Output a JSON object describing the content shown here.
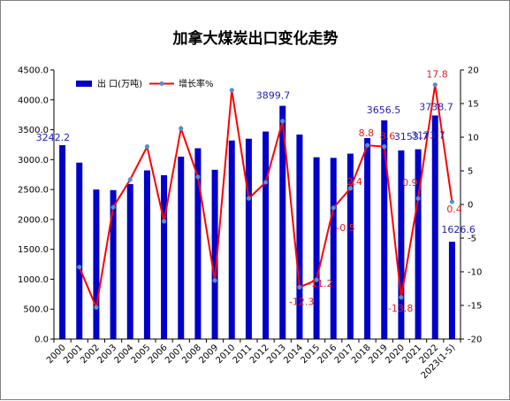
{
  "chart_data": {
    "type": "bar",
    "title": "加拿大煤炭出口变化走势",
    "categories": [
      "2000",
      "2001",
      "2002",
      "2003",
      "2004",
      "2005",
      "2006",
      "2007",
      "2008",
      "2009",
      "2010",
      "2011",
      "2012",
      "2013",
      "2014",
      "2015",
      "2016",
      "2017",
      "2018",
      "2019",
      "2020",
      "2021",
      "2022",
      "2023(1-5)"
    ],
    "series": [
      {
        "name": "出 口(万吨)",
        "type": "bar",
        "axis": "left",
        "color": "#0000c8",
        "values": [
          3242.2,
          2950,
          2500,
          2490,
          2590,
          2820,
          2740,
          3050,
          3190,
          2830,
          3320,
          3350,
          3470,
          3899.7,
          3420,
          3040,
          3030,
          3100,
          3360,
          3656.5,
          3153.7,
          3173.7,
          3738.7,
          1626.6
        ]
      },
      {
        "name": "增长率%",
        "type": "line",
        "axis": "right",
        "color": "#ff0000",
        "marker_color": "#5a8fc8",
        "values": [
          null,
          -9.3,
          -15.3,
          -0.4,
          3.7,
          8.6,
          -2.5,
          11.3,
          4.1,
          -11.3,
          17.0,
          0.9,
          3.3,
          12.4,
          -12.3,
          -11.2,
          -0.5,
          2.4,
          8.8,
          8.6,
          -13.8,
          0.9,
          17.8,
          0.4
        ]
      }
    ],
    "y_left": {
      "lim": [
        0,
        4500
      ],
      "ticks": [
        "0.0",
        "500.0",
        "1000.0",
        "1500.0",
        "2000.0",
        "2500.0",
        "3000.0",
        "3500.0",
        "4000.0",
        "4500.0"
      ]
    },
    "y_right": {
      "lim": [
        -20,
        20
      ],
      "ticks": [
        "-20",
        "-15",
        "-10",
        "-5",
        "0",
        "5",
        "10",
        "15",
        "20"
      ]
    },
    "bar_labels": [
      {
        "index": 0,
        "text": "3242.2"
      },
      {
        "index": 13,
        "text": "3899.7"
      },
      {
        "index": 19,
        "text": "3656.5"
      },
      {
        "index": 20,
        "text": "3153.7"
      },
      {
        "index": 21,
        "text": "3173.7"
      },
      {
        "index": 22,
        "text": "3738.7"
      },
      {
        "index": 23,
        "text": "1626.6"
      }
    ],
    "line_labels": [
      {
        "index": 14,
        "text": "-12.3"
      },
      {
        "index": 15,
        "text": "-11.2"
      },
      {
        "index": 16,
        "text": "-0.5"
      },
      {
        "index": 17,
        "text": "2.4"
      },
      {
        "index": 18,
        "text": "8.8"
      },
      {
        "index": 19,
        "text": "8.6"
      },
      {
        "index": 20,
        "text": "-13.8"
      },
      {
        "index": 21,
        "text": "0.9"
      },
      {
        "index": 22,
        "text": "17.8"
      },
      {
        "index": 23,
        "text": "0.4"
      }
    ],
    "legend": {
      "placement": "top-left"
    },
    "grid": false
  }
}
